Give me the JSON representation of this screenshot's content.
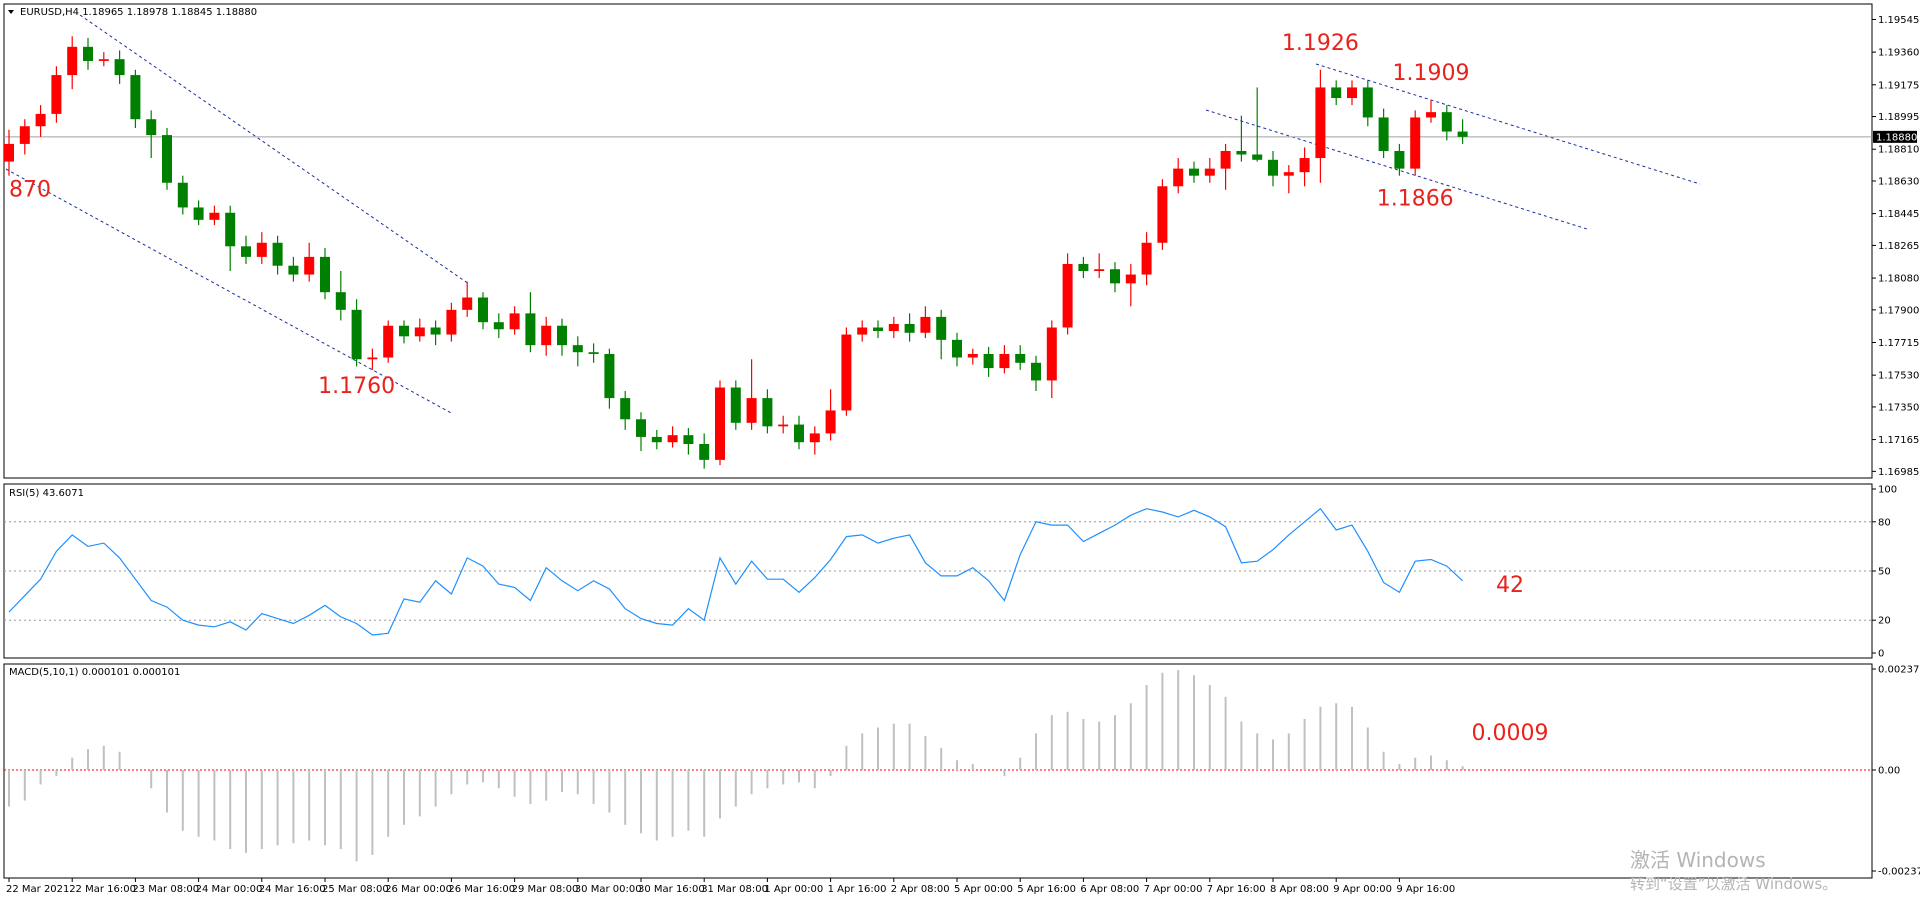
{
  "chart_data": [
    {
      "type": "candlestick",
      "title": "EURUSD,H4  1.18965 1.18978 1.18845 1.18880",
      "bull_color": "#ff0000",
      "bear_color": "#008000",
      "categories": [
        "22 Mar 2021",
        null,
        null,
        null,
        "22 Mar 16:00",
        null,
        null,
        null,
        "23 Mar 08:00",
        null,
        null,
        null,
        "24 Mar 00:00",
        null,
        null,
        null,
        "24 Mar 16:00",
        null,
        null,
        null,
        "25 Mar 08:00",
        null,
        null,
        null,
        "26 Mar 00:00",
        null,
        null,
        null,
        "26 Mar 16:00",
        null,
        null,
        null,
        "29 Mar 08:00",
        null,
        null,
        null,
        "30 Mar 00:00",
        null,
        null,
        null,
        "30 Mar 16:00",
        null,
        null,
        null,
        "31 Mar 08:00",
        null,
        null,
        null,
        "1 Apr 00:00",
        null,
        null,
        null,
        "1 Apr 16:00",
        null,
        null,
        null,
        "2 Apr 08:00",
        null,
        null,
        null,
        "5 Apr 00:00",
        null,
        null,
        null,
        "5 Apr 16:00",
        null,
        null,
        null,
        "6 Apr 08:00",
        null,
        null,
        null,
        "7 Apr 00:00",
        null,
        null,
        null,
        "7 Apr 16:00",
        null,
        null,
        null,
        "8 Apr 08:00",
        null,
        null,
        null,
        "9 Apr 00:00",
        null,
        null,
        null,
        "9 Apr 16:00",
        null,
        null,
        null,
        null
      ],
      "values": [
        [
          1.1874,
          1.1892,
          1.1866,
          1.1884
        ],
        [
          1.1884,
          1.1898,
          1.1878,
          1.1894
        ],
        [
          1.1894,
          1.1906,
          1.1888,
          1.1901
        ],
        [
          1.1901,
          1.1928,
          1.1896,
          1.1923
        ],
        [
          1.1923,
          1.1945,
          1.1915,
          1.1939
        ],
        [
          1.1939,
          1.1944,
          1.1926,
          1.1931
        ],
        [
          1.1931,
          1.1936,
          1.1928,
          1.1932
        ],
        [
          1.1932,
          1.1937,
          1.1918,
          1.1923
        ],
        [
          1.1923,
          1.1926,
          1.1893,
          1.1898
        ],
        [
          1.1898,
          1.1903,
          1.1876,
          1.1889
        ],
        [
          1.1889,
          1.1893,
          1.1858,
          1.1862
        ],
        [
          1.1862,
          1.1866,
          1.1844,
          1.1848
        ],
        [
          1.1848,
          1.1852,
          1.1838,
          1.1841
        ],
        [
          1.1841,
          1.1849,
          1.1838,
          1.1845
        ],
        [
          1.1845,
          1.1849,
          1.1812,
          1.1826
        ],
        [
          1.1826,
          1.1832,
          1.1816,
          1.182
        ],
        [
          1.182,
          1.1834,
          1.1816,
          1.1828
        ],
        [
          1.1828,
          1.1832,
          1.181,
          1.1815
        ],
        [
          1.1815,
          1.182,
          1.1806,
          1.181
        ],
        [
          1.181,
          1.1828,
          1.1806,
          1.182
        ],
        [
          1.182,
          1.1825,
          1.1796,
          1.18
        ],
        [
          1.18,
          1.1812,
          1.1784,
          1.179
        ],
        [
          1.179,
          1.1796,
          1.1758,
          1.1762
        ],
        [
          1.1762,
          1.1768,
          1.1756,
          1.1763
        ],
        [
          1.1763,
          1.1784,
          1.176,
          1.1781
        ],
        [
          1.1781,
          1.1784,
          1.1771,
          1.1775
        ],
        [
          1.1775,
          1.1785,
          1.1772,
          1.178
        ],
        [
          1.178,
          1.1784,
          1.177,
          1.1776
        ],
        [
          1.1776,
          1.1794,
          1.1772,
          1.179
        ],
        [
          1.179,
          1.1806,
          1.1786,
          1.1797
        ],
        [
          1.1797,
          1.18,
          1.1779,
          1.1783
        ],
        [
          1.1783,
          1.1788,
          1.1774,
          1.1779
        ],
        [
          1.1779,
          1.1792,
          1.1776,
          1.1788
        ],
        [
          1.1788,
          1.18,
          1.1766,
          1.177
        ],
        [
          1.177,
          1.1786,
          1.1764,
          1.1781
        ],
        [
          1.1781,
          1.1785,
          1.1764,
          1.177
        ],
        [
          1.177,
          1.1775,
          1.1758,
          1.1766
        ],
        [
          1.1766,
          1.1771,
          1.176,
          1.1765
        ],
        [
          1.1765,
          1.1768,
          1.1734,
          1.174
        ],
        [
          1.174,
          1.1744,
          1.1722,
          1.1728
        ],
        [
          1.1728,
          1.1732,
          1.171,
          1.1718
        ],
        [
          1.1718,
          1.1722,
          1.1711,
          1.1715
        ],
        [
          1.1715,
          1.1724,
          1.1712,
          1.1719
        ],
        [
          1.1719,
          1.1723,
          1.1708,
          1.1714
        ],
        [
          1.1714,
          1.172,
          1.17,
          1.1705
        ],
        [
          1.1705,
          1.175,
          1.1702,
          1.1746
        ],
        [
          1.1746,
          1.175,
          1.1722,
          1.1726
        ],
        [
          1.1726,
          1.1762,
          1.1722,
          1.174
        ],
        [
          1.174,
          1.1745,
          1.172,
          1.1724
        ],
        [
          1.1724,
          1.173,
          1.172,
          1.1725
        ],
        [
          1.1725,
          1.173,
          1.1711,
          1.1715
        ],
        [
          1.1715,
          1.1724,
          1.1708,
          1.172
        ],
        [
          1.172,
          1.1745,
          1.1716,
          1.1733
        ],
        [
          1.1733,
          1.178,
          1.173,
          1.1776
        ],
        [
          1.1776,
          1.1784,
          1.1772,
          1.178
        ],
        [
          1.178,
          1.1784,
          1.1774,
          1.1778
        ],
        [
          1.1778,
          1.1786,
          1.1774,
          1.1782
        ],
        [
          1.1782,
          1.1788,
          1.1772,
          1.1777
        ],
        [
          1.1777,
          1.1792,
          1.1774,
          1.1786
        ],
        [
          1.1786,
          1.179,
          1.1762,
          1.1773
        ],
        [
          1.1773,
          1.1777,
          1.1758,
          1.1763
        ],
        [
          1.1763,
          1.1768,
          1.1759,
          1.1765
        ],
        [
          1.1765,
          1.1769,
          1.1752,
          1.1757
        ],
        [
          1.1757,
          1.177,
          1.1754,
          1.1765
        ],
        [
          1.1765,
          1.177,
          1.1756,
          1.176
        ],
        [
          1.176,
          1.1764,
          1.1744,
          1.175
        ],
        [
          1.175,
          1.1784,
          1.174,
          1.178
        ],
        [
          1.178,
          1.1822,
          1.1776,
          1.1816
        ],
        [
          1.1816,
          1.182,
          1.1808,
          1.1812
        ],
        [
          1.1812,
          1.1822,
          1.1808,
          1.1813
        ],
        [
          1.1813,
          1.1817,
          1.18,
          1.1805
        ],
        [
          1.1805,
          1.1816,
          1.1792,
          1.181
        ],
        [
          1.181,
          1.1834,
          1.1804,
          1.1828
        ],
        [
          1.1828,
          1.1864,
          1.1824,
          1.186
        ],
        [
          1.186,
          1.1876,
          1.1856,
          1.187
        ],
        [
          1.187,
          1.1874,
          1.1862,
          1.1866
        ],
        [
          1.1866,
          1.1876,
          1.1862,
          1.187
        ],
        [
          1.187,
          1.1884,
          1.1858,
          1.188
        ],
        [
          1.188,
          1.19,
          1.1874,
          1.1878
        ],
        [
          1.1878,
          1.1916,
          1.1874,
          1.1875
        ],
        [
          1.1875,
          1.188,
          1.186,
          1.1866
        ],
        [
          1.1866,
          1.1872,
          1.1856,
          1.1868
        ],
        [
          1.1868,
          1.1882,
          1.186,
          1.1876
        ],
        [
          1.1876,
          1.1926,
          1.1862,
          1.1916
        ],
        [
          1.1916,
          1.192,
          1.1906,
          1.191
        ],
        [
          1.191,
          1.192,
          1.1906,
          1.1916
        ],
        [
          1.1916,
          1.192,
          1.1894,
          1.1899
        ],
        [
          1.1899,
          1.1904,
          1.1876,
          1.188
        ],
        [
          1.188,
          1.1884,
          1.1866,
          1.187
        ],
        [
          1.187,
          1.1903,
          1.1866,
          1.1899
        ],
        [
          1.1899,
          1.1909,
          1.1896,
          1.1902
        ],
        [
          1.1902,
          1.1906,
          1.1886,
          1.1891
        ],
        [
          1.1891,
          1.1898,
          1.1884,
          1.1888
        ]
      ],
      "ylim": [
        1.1697,
        1.1961
      ],
      "yticks": [
        {
          "value": 1.19545,
          "label": "1.19545"
        },
        {
          "value": 1.1936,
          "label": "1.19360"
        },
        {
          "value": 1.19175,
          "label": "1.19175"
        },
        {
          "value": 1.18995,
          "label": "1.18995"
        },
        {
          "value": 1.1881,
          "label": "1.18810"
        },
        {
          "value": 1.1863,
          "label": "1.18630"
        },
        {
          "value": 1.18445,
          "label": "1.18445"
        },
        {
          "value": 1.18265,
          "label": "1.18265"
        },
        {
          "value": 1.1808,
          "label": "1.18080"
        },
        {
          "value": 1.179,
          "label": "1.17900"
        },
        {
          "value": 1.17715,
          "label": "1.17715"
        },
        {
          "value": 1.1753,
          "label": "1.17530"
        },
        {
          "value": 1.1735,
          "label": "1.17350"
        },
        {
          "value": 1.17165,
          "label": "1.17165"
        },
        {
          "value": 1.16985,
          "label": "1.16985"
        }
      ],
      "last_price": {
        "value": 1.1888,
        "label": "1.18880"
      },
      "annotations": [
        {
          "label": "870",
          "x": 0,
          "y": 1.187
        },
        {
          "label": "1.1760",
          "x": 22,
          "y": 1.176
        },
        {
          "label": "1.1926",
          "x": 83,
          "y": 1.1926
        },
        {
          "label": "1.1909",
          "x": 90,
          "y": 1.1909
        },
        {
          "label": "1.1866",
          "x": 89,
          "y": 1.1866
        }
      ]
    },
    {
      "type": "line",
      "title": "RSI(5) 43.6071",
      "color": "#1e90ff",
      "values": [
        25,
        35,
        45,
        62,
        72,
        65,
        67,
        58,
        45,
        32,
        28,
        20,
        17,
        16,
        19,
        14,
        24,
        21,
        18,
        23,
        29,
        22,
        18,
        11,
        12,
        33,
        31,
        44,
        36,
        58,
        53,
        42,
        40,
        32,
        52,
        44,
        38,
        44,
        39,
        27,
        21,
        18,
        17,
        27,
        20,
        58,
        42,
        56,
        45,
        45,
        37,
        46,
        57,
        71,
        72,
        67,
        70,
        72,
        55,
        47,
        47,
        52,
        44,
        32,
        60,
        80,
        78,
        78,
        68,
        73,
        78,
        84,
        88,
        86,
        83,
        87,
        83,
        77,
        55,
        56,
        63,
        72,
        80,
        88,
        75,
        78,
        62,
        43,
        37,
        56,
        57,
        53,
        44
      ],
      "ylim": [
        0,
        100
      ],
      "yticks": [
        0,
        20,
        50,
        80,
        100
      ],
      "annotations": [
        {
          "label": "42",
          "x": 95,
          "y": 42
        }
      ]
    },
    {
      "type": "bar",
      "title": "MACD(5,10,1) 0.000101 0.000101",
      "color": "#c0c0c0",
      "zero_line_color": "#ff0000",
      "values": [
        -0.00086,
        -0.00072,
        -0.00034,
        -0.00014,
        0.00029,
        0.00049,
        0.00057,
        0.00043,
        0,
        -0.00043,
        -0.001,
        -0.00143,
        -0.00157,
        -0.00166,
        -0.00186,
        -0.00195,
        -0.00186,
        -0.00177,
        -0.00172,
        -0.00166,
        -0.00177,
        -0.00186,
        -0.00215,
        -0.002,
        -0.00157,
        -0.00129,
        -0.00109,
        -0.00086,
        -0.00057,
        -0.00034,
        -0.00029,
        -0.00043,
        -0.00063,
        -0.0008,
        -0.00072,
        -0.00052,
        -0.00057,
        -0.0008,
        -0.001,
        -0.00129,
        -0.00149,
        -0.00166,
        -0.00157,
        -0.00143,
        -0.00157,
        -0.00114,
        -0.00086,
        -0.00057,
        -0.00043,
        -0.00034,
        -0.00029,
        -0.00043,
        -0.00014,
        0.00057,
        0.00086,
        0.001,
        0.00109,
        0.00109,
        0.0008,
        0.00052,
        0.00023,
        0.00014,
        0,
        -0.00014,
        0.00029,
        0.00086,
        0.00129,
        0.00137,
        0.0012,
        0.00114,
        0.00129,
        0.00157,
        0.002,
        0.00229,
        0.00235,
        0.00223,
        0.002,
        0.00172,
        0.00114,
        0.00086,
        0.00072,
        0.00086,
        0.0012,
        0.00149,
        0.00157,
        0.00149,
        0.001,
        0.00043,
        0.00014,
        0.00029,
        0.00034,
        0.00023,
        9e-05
      ],
      "ylim": [
        -0.002377,
        0.002377
      ],
      "yticks": [
        0.002377,
        {
          "value": 0,
          "label": "0.00"
        },
        -0.002377
      ],
      "annotations": [
        {
          "label": "0.0009",
          "x": 95,
          "y": 0.0009
        }
      ]
    }
  ],
  "watermark": {
    "line1": "激活 Windows",
    "line2": "转到“设置”以激活 Windows。"
  }
}
